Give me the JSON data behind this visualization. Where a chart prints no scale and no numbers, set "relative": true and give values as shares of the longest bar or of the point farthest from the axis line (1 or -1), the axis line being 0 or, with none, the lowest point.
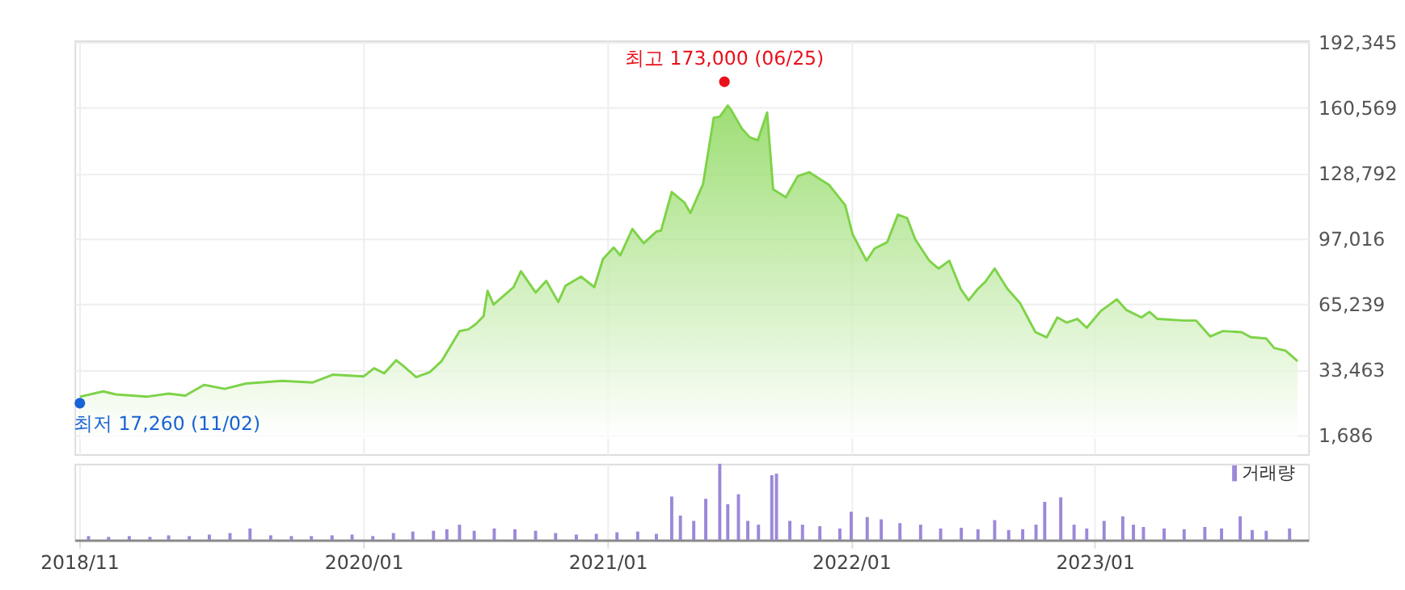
{
  "chart_data": [
    {
      "type": "area",
      "xlim": [
        "2018-10-25",
        "2023-11-17"
      ],
      "ylim": [
        -7500,
        193000
      ],
      "yticks": [
        {
          "value": 1686,
          "label": "1,686"
        },
        {
          "value": 33463,
          "label": "33,463"
        },
        {
          "value": 65239,
          "label": "65,239"
        },
        {
          "value": 97016,
          "label": "97,016"
        },
        {
          "value": 128792,
          "label": "128,792"
        },
        {
          "value": 160569,
          "label": "160,569"
        },
        {
          "value": 192345,
          "label": "192,345"
        }
      ],
      "xticks": [
        {
          "value": "2018-11-01",
          "label": null
        },
        {
          "value": "2020-01-01",
          "label": null
        },
        {
          "value": "2021-01-01",
          "label": null
        },
        {
          "value": "2022-01-01",
          "label": null
        },
        {
          "value": "2023-01-01",
          "label": null
        }
      ],
      "grid": true,
      "tick_labels": "y",
      "annotations": [
        {
          "text": "최고 173,000 (06/25)",
          "x": "2021-06-25",
          "y": 173000
        },
        {
          "text": "최저 17,260 (11/02)",
          "x": "2018-11-02",
          "y": 17260
        }
      ],
      "series": [
        {
          "color": "#7ed348",
          "x": [
            "2018-11-02",
            "2018-12-07",
            "2018-12-26",
            "2019-02-10",
            "2019-03-15",
            "2019-04-09",
            "2019-05-07",
            "2019-06-07",
            "2019-07-09",
            "2019-09-01",
            "2019-10-17",
            "2019-11-16",
            "2020-01-01",
            "2020-01-17",
            "2020-02-01",
            "2020-02-19",
            "2020-03-02",
            "2020-03-20",
            "2020-04-09",
            "2020-04-27",
            "2020-05-24",
            "2020-06-06",
            "2020-06-17",
            "2020-06-29",
            "2020-07-05",
            "2020-07-14",
            "2020-08-13",
            "2020-08-24",
            "2020-09-15",
            "2020-10-01",
            "2020-10-19",
            "2020-10-30",
            "2020-11-22",
            "2020-12-12",
            "2020-12-25",
            "2021-01-10",
            "2021-01-20",
            "2021-02-07",
            "2021-02-24",
            "2021-03-15",
            "2021-03-22",
            "2021-04-07",
            "2021-04-26",
            "2021-05-05",
            "2021-05-24",
            "2021-06-09",
            "2021-06-18",
            "2021-06-30",
            "2021-07-05",
            "2021-07-21",
            "2021-08-02",
            "2021-08-14",
            "2021-08-28",
            "2021-09-06",
            "2021-09-25",
            "2021-10-13",
            "2021-10-30",
            "2021-11-29",
            "2021-12-23",
            "2022-01-03",
            "2022-01-24",
            "2022-02-05",
            "2022-02-24",
            "2022-03-12",
            "2022-03-26",
            "2022-04-07",
            "2022-04-28",
            "2022-05-12",
            "2022-05-28",
            "2022-06-14",
            "2022-06-26",
            "2022-07-10",
            "2022-07-21",
            "2022-08-04",
            "2022-08-23",
            "2022-09-11",
            "2022-10-04",
            "2022-10-21",
            "2022-11-06",
            "2022-11-20",
            "2022-12-06",
            "2022-12-20",
            "2023-01-10",
            "2023-02-03",
            "2023-02-17",
            "2023-03-12",
            "2023-03-24",
            "2023-04-05",
            "2023-05-14",
            "2023-06-02",
            "2023-06-23",
            "2023-07-12",
            "2023-08-09",
            "2023-08-23",
            "2023-09-15",
            "2023-09-27",
            "2023-10-14",
            "2023-11-01"
          ],
          "values": [
            20400,
            23000,
            21500,
            20400,
            21900,
            20900,
            26100,
            24200,
            26800,
            28100,
            27300,
            31100,
            30200,
            34200,
            31700,
            38100,
            35000,
            29900,
            32200,
            37600,
            52200,
            53000,
            55500,
            59400,
            71700,
            65000,
            73500,
            81200,
            70900,
            76500,
            66300,
            74200,
            78600,
            73500,
            87100,
            92700,
            88900,
            101700,
            94800,
            100400,
            100900,
            119600,
            114500,
            109400,
            123500,
            155600,
            156100,
            161500,
            159400,
            150400,
            146100,
            144600,
            158100,
            120900,
            117100,
            127300,
            129200,
            123000,
            113200,
            99200,
            86300,
            92200,
            95300,
            108600,
            106900,
            96600,
            86300,
            82500,
            86300,
            72700,
            67100,
            72700,
            76100,
            82500,
            72700,
            65800,
            51700,
            49200,
            58800,
            56300,
            58100,
            53800,
            61900,
            67600,
            62500,
            58800,
            61500,
            58100,
            57300,
            57300,
            49600,
            52200,
            51700,
            49200,
            48600,
            44000,
            42700,
            37600
          ]
        },
        {
          "type": "scatter",
          "color": "#e8111b",
          "x": [
            "2021-06-25"
          ],
          "values": [
            173000
          ]
        },
        {
          "type": "scatter",
          "color": "#1a63d6",
          "x": [
            "2018-11-02"
          ],
          "values": [
            17260
          ]
        }
      ]
    },
    {
      "type": "bar",
      "relative": true,
      "xlim": [
        "2018-10-25",
        "2023-11-17"
      ],
      "xticks": [
        {
          "value": "2018-11-01",
          "label": "2018/11"
        },
        {
          "value": "2020-01-01",
          "label": "2020/01"
        },
        {
          "value": "2021-01-01",
          "label": "2021/01"
        },
        {
          "value": "2022-01-01",
          "label": "2022/01"
        },
        {
          "value": "2023-01-01",
          "label": "2023/01"
        }
      ],
      "grid": "x",
      "tick_labels": "x",
      "legend": "top right",
      "series": [
        {
          "name": "거래량",
          "color": "#9c88d8",
          "x": [
            "2018-11-15",
            "2018-12-15",
            "2019-01-15",
            "2019-02-15",
            "2019-03-15",
            "2019-04-15",
            "2019-05-15",
            "2019-06-15",
            "2019-07-15",
            "2019-08-15",
            "2019-09-15",
            "2019-10-15",
            "2019-11-15",
            "2019-12-15",
            "2020-01-15",
            "2020-02-15",
            "2020-03-15",
            "2020-04-15",
            "2020-05-05",
            "2020-05-24",
            "2020-06-15",
            "2020-07-15",
            "2020-08-15",
            "2020-09-15",
            "2020-10-15",
            "2020-11-15",
            "2020-12-15",
            "2021-01-15",
            "2021-02-15",
            "2021-03-15",
            "2021-04-07",
            "2021-04-20",
            "2021-05-10",
            "2021-05-28",
            "2021-06-18",
            "2021-06-30",
            "2021-07-16",
            "2021-07-30",
            "2021-08-15",
            "2021-09-04",
            "2021-09-11",
            "2021-10-01",
            "2021-10-20",
            "2021-11-15",
            "2021-12-15",
            "2022-01-01",
            "2022-01-25",
            "2022-02-15",
            "2022-03-15",
            "2022-04-15",
            "2022-05-15",
            "2022-06-15",
            "2022-07-10",
            "2022-08-04",
            "2022-08-25",
            "2022-09-15",
            "2022-10-05",
            "2022-10-18",
            "2022-11-11",
            "2022-12-01",
            "2022-12-20",
            "2023-01-15",
            "2023-02-12",
            "2023-02-28",
            "2023-03-15",
            "2023-04-15",
            "2023-05-15",
            "2023-06-15",
            "2023-07-10",
            "2023-08-07",
            "2023-08-25",
            "2023-09-15",
            "2023-10-20"
          ],
          "values": [
            0.05,
            0.04,
            0.05,
            0.04,
            0.06,
            0.05,
            0.07,
            0.09,
            0.15,
            0.06,
            0.05,
            0.05,
            0.06,
            0.07,
            0.05,
            0.09,
            0.11,
            0.12,
            0.14,
            0.2,
            0.12,
            0.15,
            0.14,
            0.12,
            0.09,
            0.07,
            0.08,
            0.1,
            0.11,
            0.08,
            0.57,
            0.32,
            0.25,
            0.54,
            1.0,
            0.47,
            0.6,
            0.25,
            0.2,
            0.85,
            0.87,
            0.25,
            0.2,
            0.18,
            0.15,
            0.37,
            0.3,
            0.27,
            0.22,
            0.2,
            0.15,
            0.16,
            0.14,
            0.26,
            0.13,
            0.14,
            0.2,
            0.5,
            0.56,
            0.2,
            0.15,
            0.25,
            0.31,
            0.2,
            0.17,
            0.15,
            0.14,
            0.17,
            0.15,
            0.31,
            0.13,
            0.12,
            0.15
          ]
        }
      ]
    }
  ]
}
